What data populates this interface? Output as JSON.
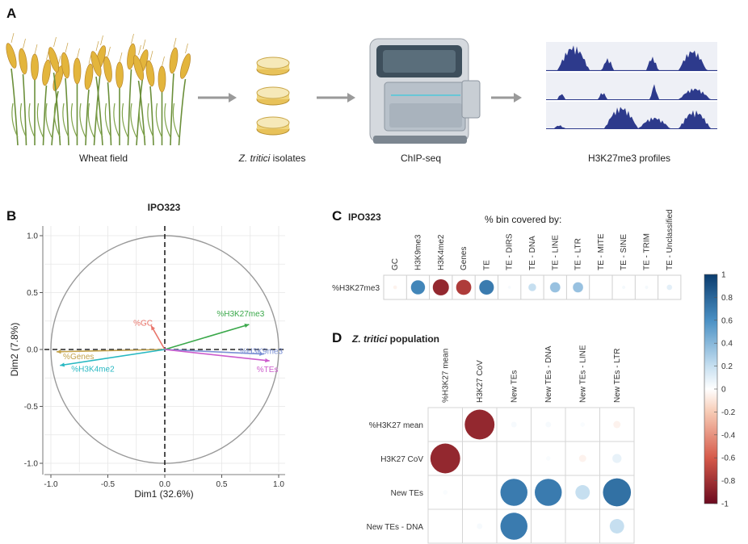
{
  "panel_a": {
    "letter": "A",
    "steps": [
      {
        "label": "Wheat field"
      },
      {
        "label_italic": "Z. tritici",
        "label_rest": " isolates"
      },
      {
        "label": "ChIP-seq"
      },
      {
        "label": "H3K27me3 profiles"
      }
    ]
  },
  "panel_b": {
    "letter": "B",
    "title": "IPO323",
    "xlabel": "Dim1 (32.6%)",
    "ylabel": "Dim2 (7.8%)",
    "x_ticks": [
      "-1.0",
      "-0.5",
      "0.0",
      "0.5",
      "1.0"
    ],
    "y_ticks": [
      "1.0",
      "0.5",
      "0.0",
      "-0.5",
      "-1.0"
    ],
    "arrows": [
      {
        "label": "%H3K27me3",
        "x": 0.74,
        "y": 0.22,
        "color": "#3aa84a"
      },
      {
        "label": "%GC",
        "x": -0.12,
        "y": 0.21,
        "color": "#e8746a"
      },
      {
        "label": "%Genes",
        "x": -0.95,
        "y": -0.02,
        "color": "#c3a24b"
      },
      {
        "label": "%H3K4me2",
        "x": -0.92,
        "y": -0.14,
        "color": "#27b8c2"
      },
      {
        "label": "%H3K9me3",
        "x": 0.87,
        "y": -0.04,
        "color": "#7a8fd4"
      },
      {
        "label": "%TEs",
        "x": 0.92,
        "y": -0.1,
        "color": "#cc5bcc"
      }
    ]
  },
  "panel_c": {
    "letter": "C",
    "title": "IPO323",
    "subtitle": "% bin covered by:",
    "row_label": "%H3K27me3",
    "columns": [
      "GC",
      "H3K9me3",
      "H3K4me2",
      "Genes",
      "TE",
      "TE - DIRS",
      "TE - DNA",
      "TE - LINE",
      "TE - LTR",
      "TE - MITE",
      "TE - SINE",
      "TE - TRIM",
      "TE - Unclassified"
    ],
    "values": [
      -0.05,
      0.65,
      -0.85,
      -0.75,
      0.7,
      0.03,
      0.2,
      0.35,
      0.35,
      0.0,
      0.04,
      0.04,
      0.1
    ]
  },
  "panel_d": {
    "letter": "D",
    "title_italic": "Z. tritici",
    "title_rest": " population",
    "columns": [
      "%H3K27 mean",
      "H3K27 CoV",
      "New TEs",
      "New TEs - DNA",
      "New TEs - LINE",
      "New TEs - LTR"
    ],
    "rows": [
      "%H3K27 mean",
      "H3K27 CoV",
      "New TEs",
      "New TEs - DNA"
    ],
    "matrix": [
      [
        null,
        -0.85,
        0.03,
        0.03,
        0.02,
        -0.05
      ],
      [
        -0.85,
        null,
        null,
        0.02,
        -0.05,
        0.08
      ],
      [
        0.02,
        null,
        0.7,
        0.7,
        0.2,
        0.75
      ],
      [
        null,
        0.03,
        0.7,
        null,
        null,
        0.2
      ]
    ]
  },
  "colorbar": {
    "ticks": [
      "1",
      "0.8",
      "0.6",
      "0.4",
      "0.2",
      "0",
      "-0.2",
      "-0.4",
      "-0.6",
      "-0.8",
      "-1"
    ]
  }
}
